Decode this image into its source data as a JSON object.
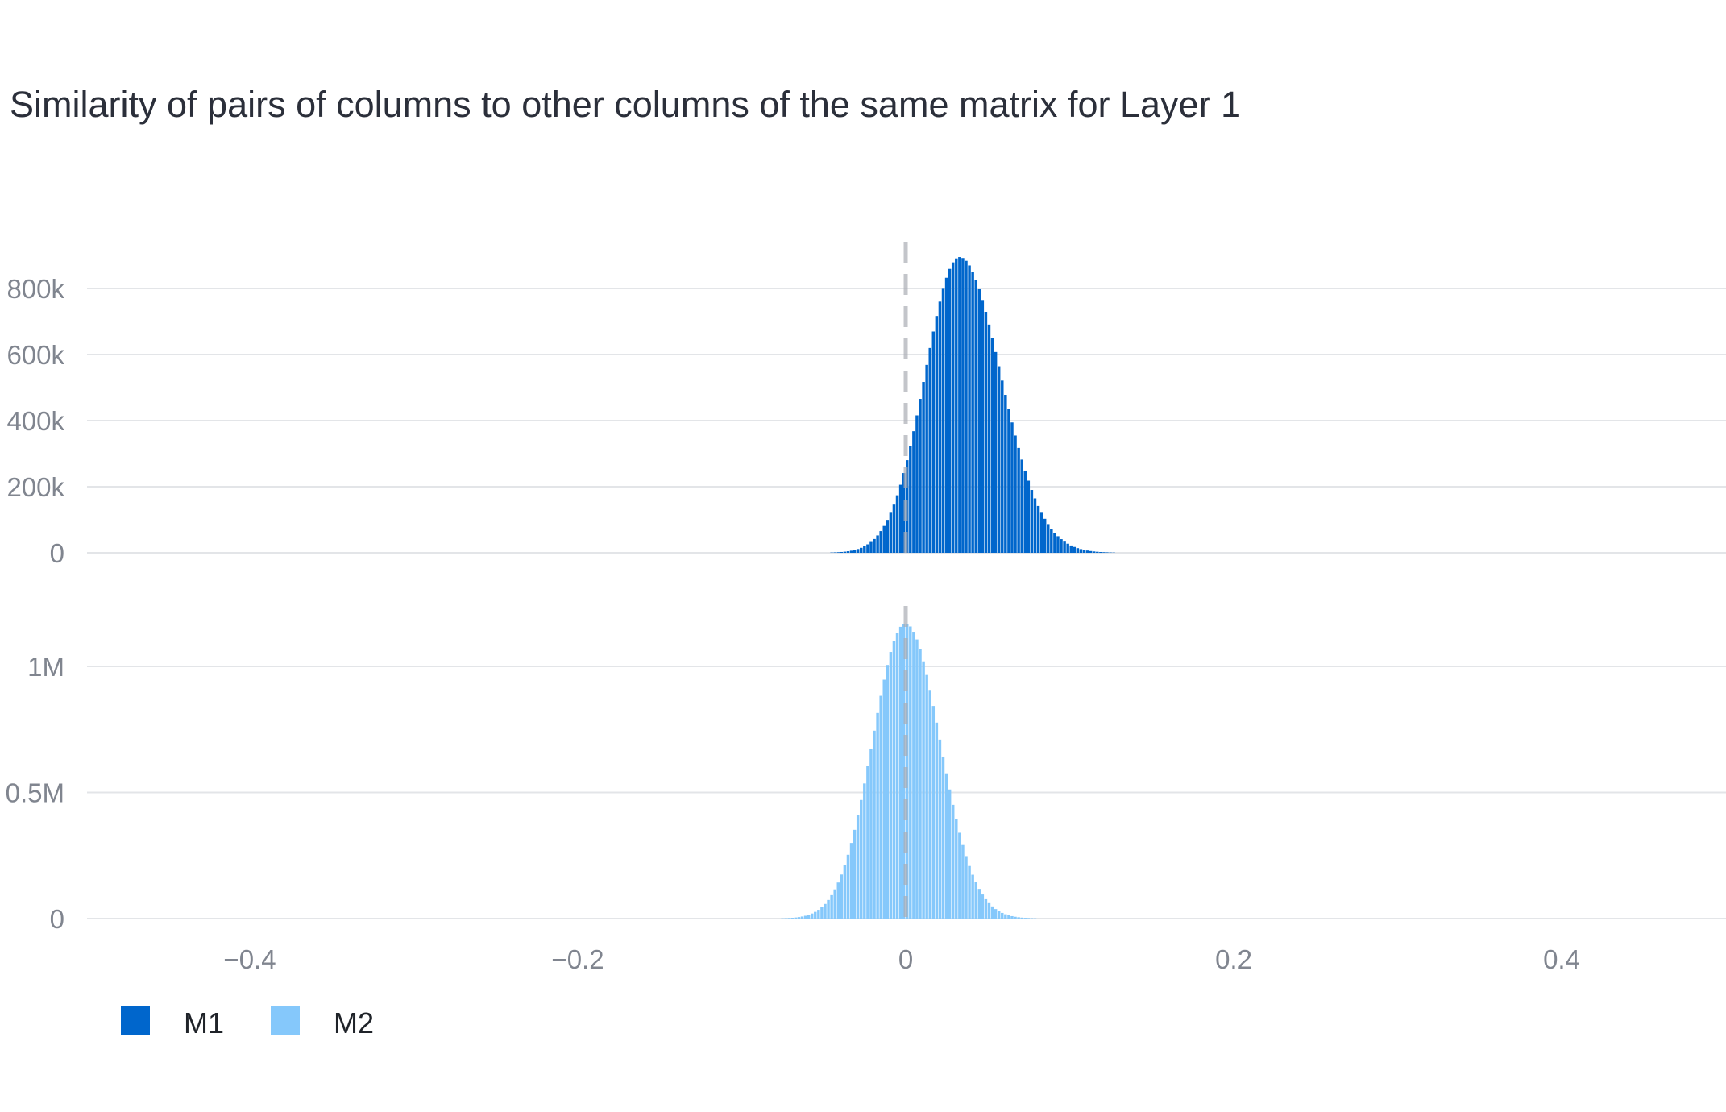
{
  "chart_data": {
    "type": "bar",
    "title": "Similarity of pairs of columns to other columns of the same matrix for Layer 1",
    "xlabel": "",
    "xlim": [
      -0.5,
      0.5
    ],
    "x_ticks": [
      {
        "value": -0.4,
        "label": "−0.4"
      },
      {
        "value": -0.2,
        "label": "−0.2"
      },
      {
        "value": 0,
        "label": "0"
      },
      {
        "value": 0.2,
        "label": "0.2"
      },
      {
        "value": 0.4,
        "label": "0.4"
      }
    ],
    "reference_line_x": 0,
    "legend_position": "bottom-left",
    "series": [
      {
        "name": "M1",
        "color": "#0066cc",
        "ylim": [
          0,
          900000
        ],
        "y_ticks": [
          {
            "value": 0,
            "label": "0"
          },
          {
            "value": 200000,
            "label": "200k"
          },
          {
            "value": 400000,
            "label": "400k"
          },
          {
            "value": 600000,
            "label": "600k"
          },
          {
            "value": 800000,
            "label": "800k"
          }
        ],
        "distribution": {
          "peak_x": 0.033,
          "peak_count": 895000,
          "std_left": 0.021,
          "std_right": 0.025,
          "bin_width": 0.002,
          "x_min": -0.21,
          "x_max": 0.33
        }
      },
      {
        "name": "M2",
        "color": "#85c8fb",
        "ylim": [
          0,
          1200000
        ],
        "y_ticks": [
          {
            "value": 0,
            "label": "0"
          },
          {
            "value": 500000,
            "label": "0.5M"
          },
          {
            "value": 1000000,
            "label": "1M"
          }
        ],
        "distribution": {
          "peak_x": 0.0,
          "peak_count": 1170000,
          "std_left": 0.02,
          "std_right": 0.021,
          "bin_width": 0.002,
          "x_min": -0.12,
          "x_max": 0.15
        }
      }
    ]
  }
}
